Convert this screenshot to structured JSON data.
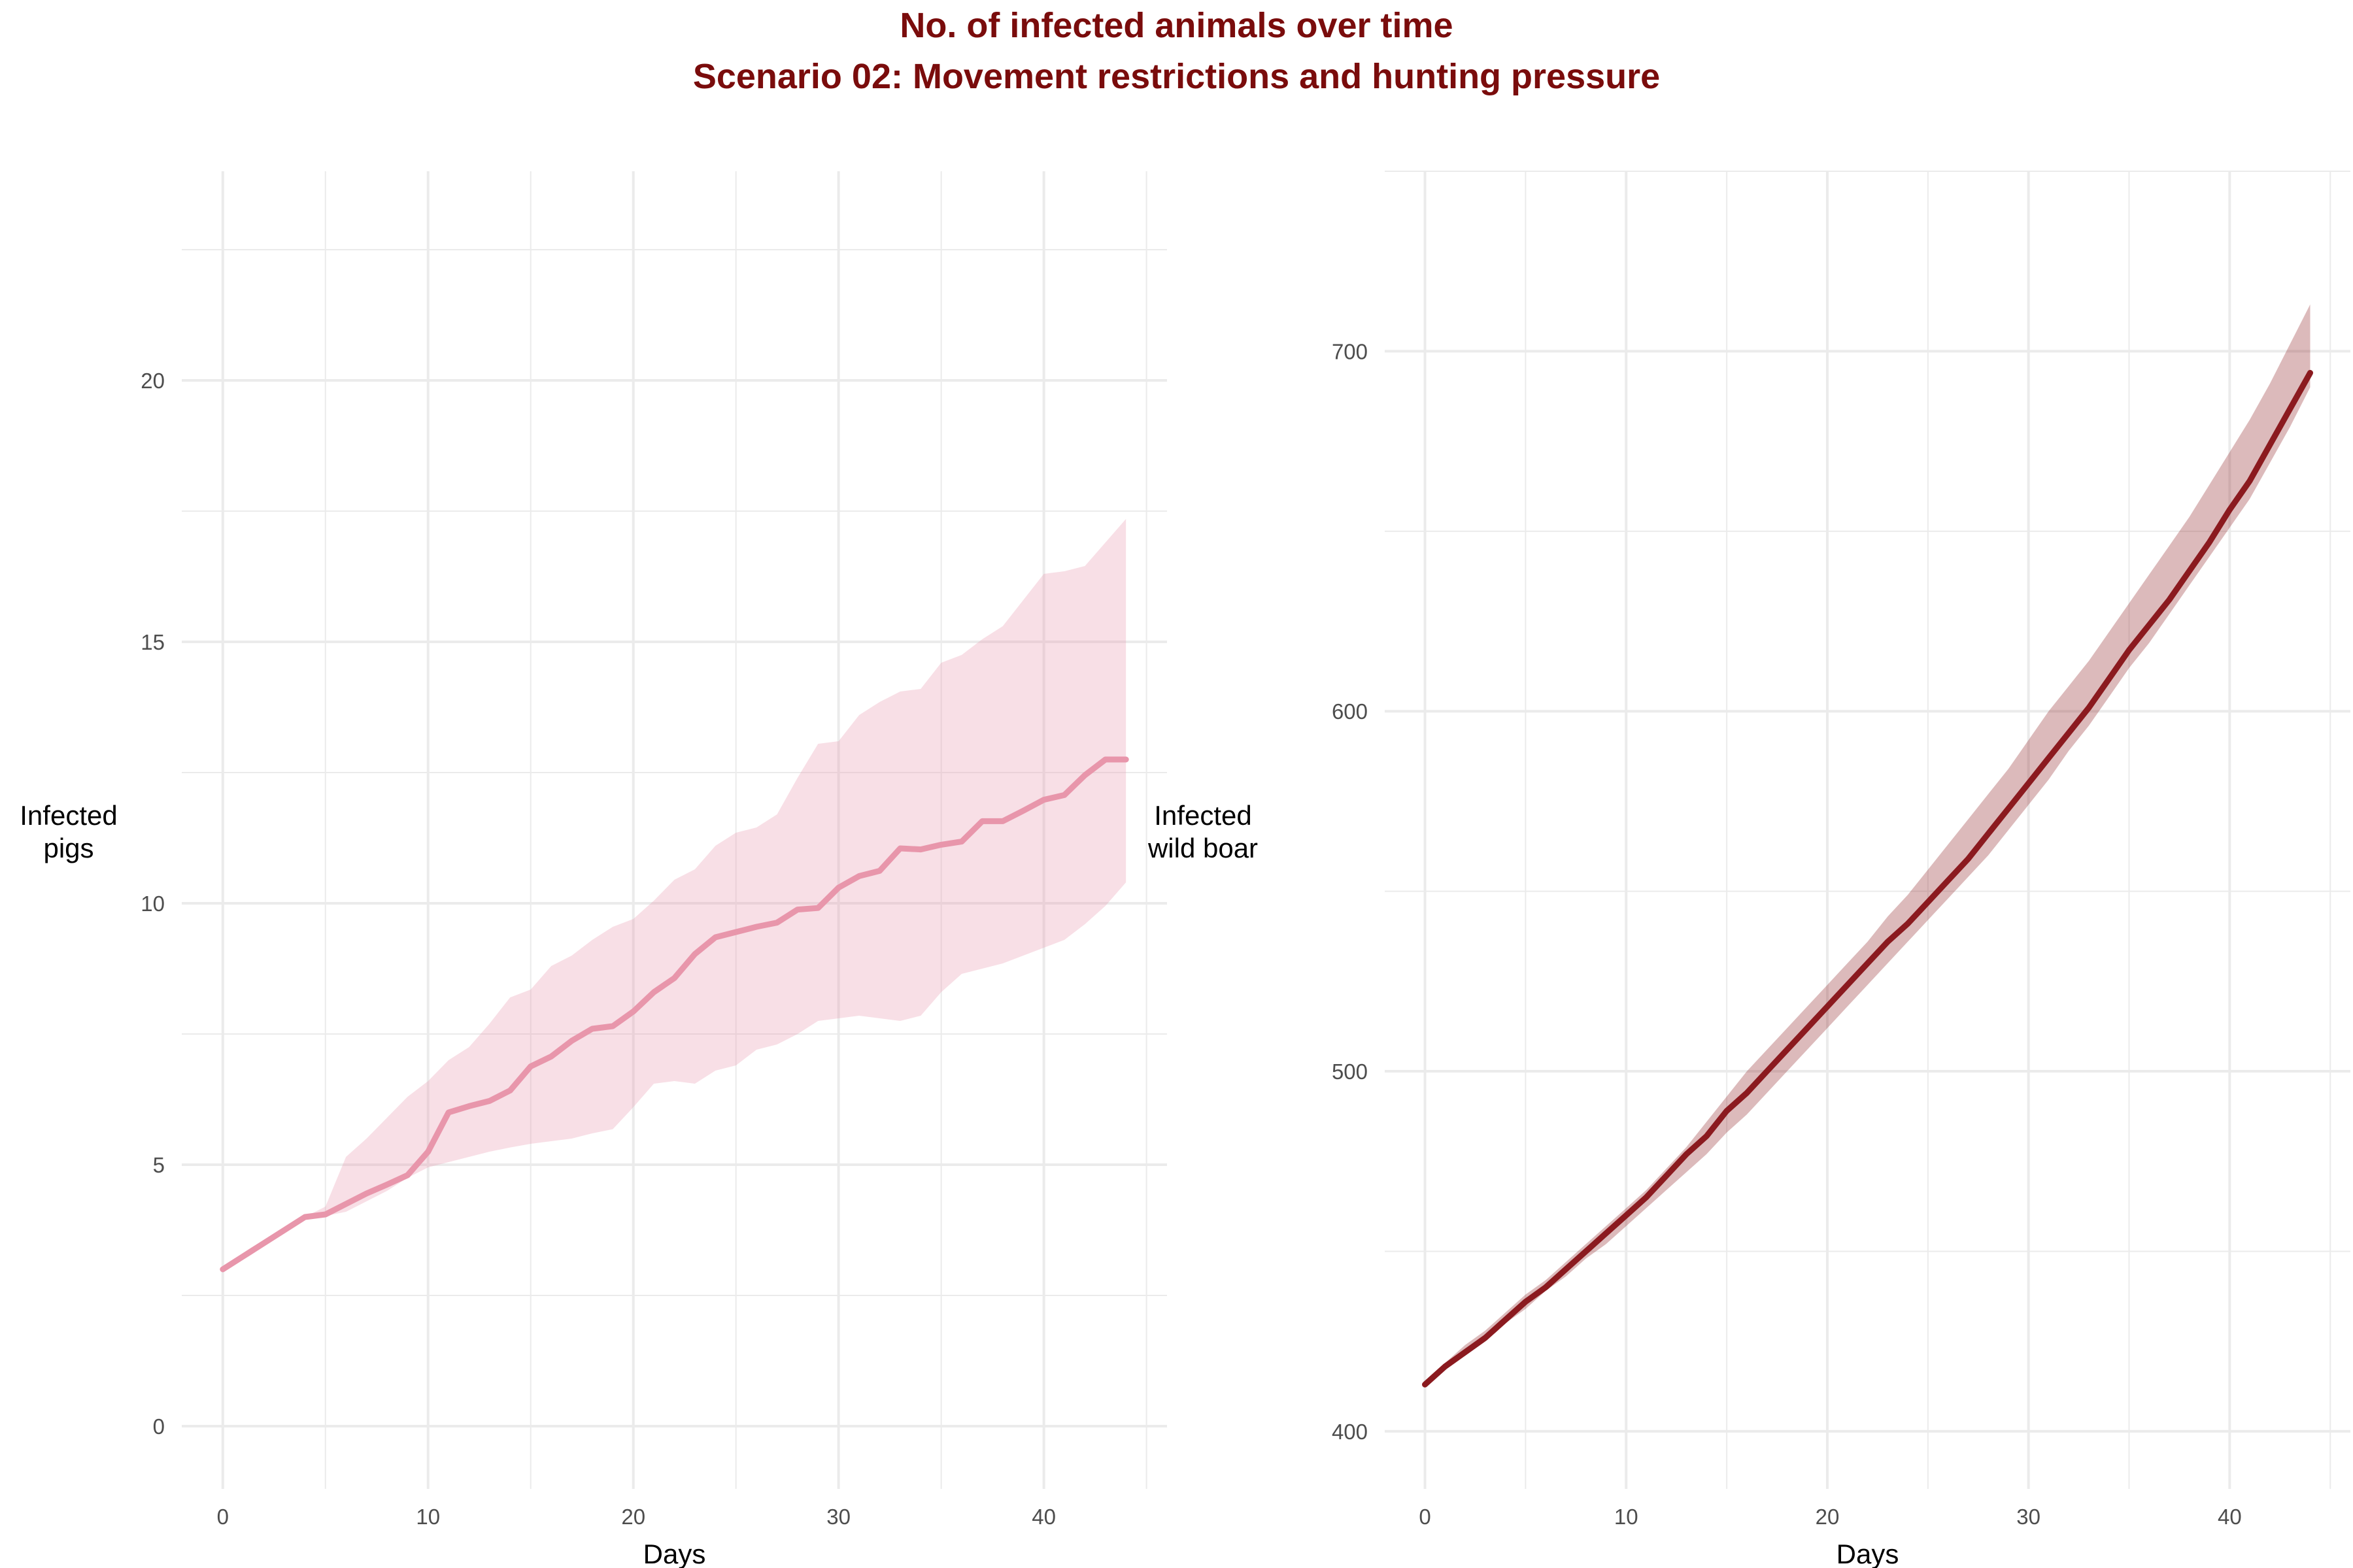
{
  "title": "No. of infected animals over time",
  "subtitle": "Scenario 02: Movement restrictions and hunting pressure",
  "colors": {
    "title": "#7a0c0c",
    "pigs": "#e896ab",
    "wild_boar": "#8b1a1f",
    "grid": "#ebebeb"
  },
  "chart_data": [
    {
      "type": "line",
      "xlabel": "Days",
      "ylabel": [
        "Infected",
        "pigs"
      ],
      "x_ticks": [
        "0",
        "10",
        "20",
        "30",
        "40"
      ],
      "y_ticks": [
        "0",
        "5",
        "10",
        "15",
        "20"
      ],
      "xlim": [
        -2,
        46
      ],
      "ylim": [
        -1.2,
        24
      ],
      "grid": true,
      "ribbon": true,
      "x": [
        0,
        1,
        2,
        3,
        4,
        5,
        6,
        7,
        8,
        9,
        10,
        11,
        12,
        13,
        14,
        15,
        16,
        17,
        18,
        19,
        20,
        21,
        22,
        23,
        24,
        25,
        26,
        27,
        28,
        29,
        30,
        31,
        32,
        33,
        34,
        35,
        36,
        37,
        38,
        39,
        40,
        41,
        42,
        43,
        44
      ],
      "values": [
        3.0,
        3.25,
        3.5,
        3.75,
        4.0,
        4.05,
        4.25,
        4.45,
        4.62,
        4.8,
        5.25,
        6.0,
        6.12,
        6.22,
        6.42,
        6.88,
        7.07,
        7.37,
        7.6,
        7.65,
        7.93,
        8.3,
        8.57,
        9.03,
        9.35,
        9.45,
        9.55,
        9.63,
        9.88,
        9.91,
        10.3,
        10.52,
        10.62,
        11.05,
        11.03,
        11.12,
        11.18,
        11.57,
        11.57,
        11.77,
        11.98,
        12.07,
        12.45,
        12.75,
        12.75
      ],
      "lower": [
        3.0,
        3.25,
        3.5,
        3.75,
        4.0,
        4.02,
        4.1,
        4.3,
        4.5,
        4.75,
        4.95,
        5.05,
        5.15,
        5.25,
        5.33,
        5.4,
        5.45,
        5.5,
        5.6,
        5.68,
        6.1,
        6.55,
        6.6,
        6.55,
        6.8,
        6.9,
        7.2,
        7.3,
        7.5,
        7.75,
        7.8,
        7.85,
        7.8,
        7.75,
        7.85,
        8.3,
        8.65,
        8.75,
        8.85,
        9.0,
        9.15,
        9.3,
        9.6,
        9.95,
        10.4
      ],
      "upper": [
        3.0,
        3.25,
        3.5,
        3.75,
        4.0,
        4.2,
        5.15,
        5.5,
        5.9,
        6.3,
        6.6,
        7.0,
        7.25,
        7.7,
        8.2,
        8.35,
        8.8,
        9.0,
        9.3,
        9.55,
        9.7,
        10.05,
        10.45,
        10.65,
        11.1,
        11.35,
        11.45,
        11.7,
        12.4,
        13.05,
        13.1,
        13.6,
        13.85,
        14.05,
        14.1,
        14.6,
        14.75,
        15.05,
        15.3,
        15.8,
        16.3,
        16.35,
        16.45,
        16.9,
        17.35
      ]
    },
    {
      "type": "line",
      "xlabel": "Days",
      "ylabel": [
        "Infected",
        "wild boar"
      ],
      "x_ticks": [
        "0",
        "10",
        "20",
        "30",
        "40"
      ],
      "y_ticks": [
        "400",
        "500",
        "600",
        "700"
      ],
      "xlim": [
        -2,
        46
      ],
      "ylim": [
        384,
        750
      ],
      "grid": true,
      "ribbon": true,
      "x": [
        0,
        1,
        2,
        3,
        4,
        5,
        6,
        7,
        8,
        9,
        10,
        11,
        12,
        13,
        14,
        15,
        16,
        17,
        18,
        19,
        20,
        21,
        22,
        23,
        24,
        25,
        26,
        27,
        28,
        29,
        30,
        31,
        32,
        33,
        34,
        35,
        36,
        37,
        38,
        39,
        40,
        41,
        42,
        43,
        44
      ],
      "values": [
        413,
        418,
        422,
        426,
        431,
        436,
        440,
        445,
        450,
        455,
        460,
        465,
        471,
        477,
        482,
        489,
        494,
        500,
        506,
        512,
        518,
        524,
        530,
        536,
        541,
        547,
        553,
        559,
        566,
        573,
        580,
        587,
        594,
        601,
        609,
        617,
        624,
        631,
        639,
        647,
        656,
        664,
        674,
        684,
        694
      ],
      "lower": [
        413,
        418,
        421,
        425,
        430,
        434,
        439,
        443,
        448,
        452,
        457,
        462,
        467,
        472,
        477,
        483,
        488,
        494,
        500,
        506,
        512,
        518,
        524,
        530,
        536,
        542,
        548,
        554,
        560,
        567,
        574,
        581,
        589,
        596,
        604,
        612,
        619,
        627,
        635,
        643,
        651,
        659,
        669,
        679,
        690
      ],
      "upper": [
        413,
        419,
        424,
        428,
        433,
        438,
        442,
        447,
        452,
        457,
        462,
        467,
        473,
        479,
        486,
        493,
        500,
        506,
        512,
        518,
        524,
        530,
        536,
        543,
        549,
        556,
        563,
        570,
        577,
        584,
        592,
        600,
        607,
        614,
        622,
        630,
        638,
        646,
        654,
        663,
        672,
        681,
        691,
        702,
        713
      ]
    }
  ]
}
